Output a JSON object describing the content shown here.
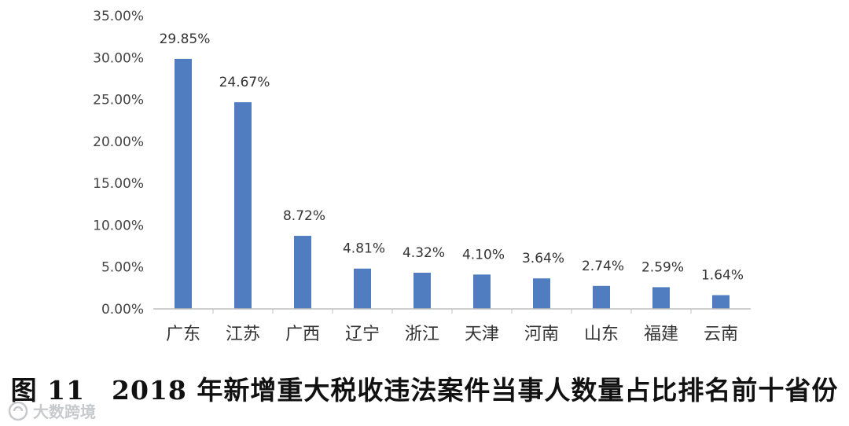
{
  "chart_data": {
    "type": "bar",
    "categories": [
      "广东",
      "江苏",
      "广西",
      "辽宁",
      "浙江",
      "天津",
      "河南",
      "山东",
      "福建",
      "云南"
    ],
    "values": [
      29.85,
      24.67,
      8.72,
      4.81,
      4.32,
      4.1,
      3.64,
      2.74,
      2.59,
      1.64
    ],
    "data_labels": [
      "29.85%",
      "24.67%",
      "8.72%",
      "4.81%",
      "4.32%",
      "4.10%",
      "3.64%",
      "2.74%",
      "2.59%",
      "1.64%"
    ],
    "yticks": [
      0,
      5,
      10,
      15,
      20,
      25,
      30,
      35
    ],
    "ytick_labels": [
      "0.00%",
      "5.00%",
      "10.00%",
      "15.00%",
      "20.00%",
      "25.00%",
      "30.00%",
      "35.00%"
    ],
    "ylim": [
      0,
      35
    ],
    "grid": false,
    "legend": "none",
    "bar_color": "#4f7dbf",
    "title": "",
    "xlabel": "",
    "ylabel": ""
  },
  "caption": "图 11　2018 年新增重大税收违法案件当事人数量占比排名前十省份",
  "watermark": {
    "icon": "logo-icon",
    "text": "大数跨境"
  }
}
